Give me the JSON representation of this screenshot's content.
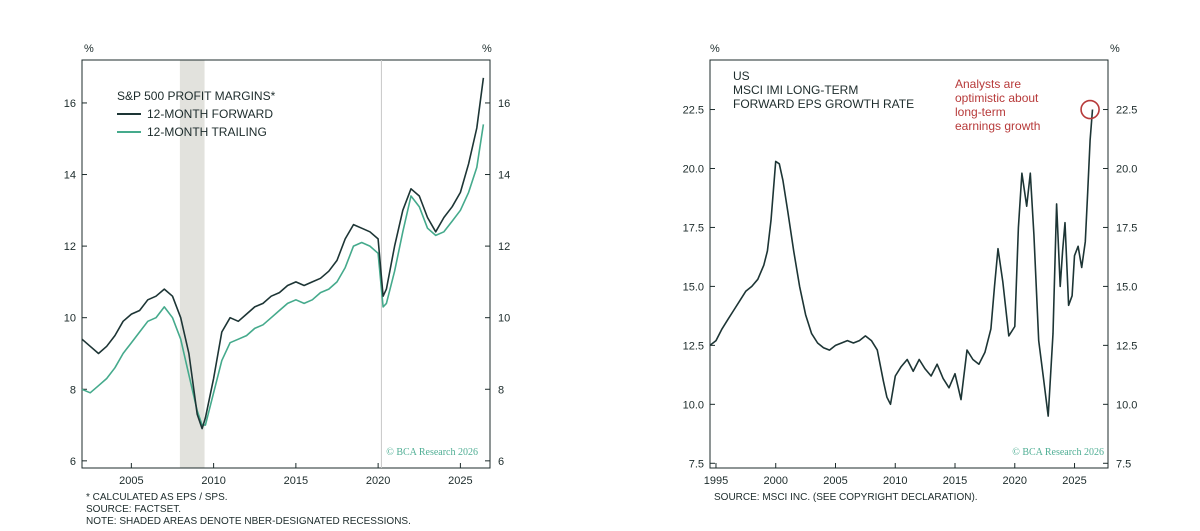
{
  "colors": {
    "forward": "#1d3535",
    "trailing": "#45aa8c",
    "recession": "#e2e2dd",
    "annotation": "#b73a3a",
    "copyright": "#4fae94",
    "axis": "#1c2b2b"
  },
  "chart_data": [
    {
      "type": "line",
      "legend_title": "S&P 500 PROFIT MARGINS*",
      "unit_left": "%",
      "unit_right": "%",
      "xlim": [
        2002.0,
        2026.8
      ],
      "ylim": [
        5.8,
        17.2
      ],
      "xticks": [
        2005,
        2010,
        2015,
        2020,
        2025
      ],
      "yticks": [
        6,
        8,
        10,
        12,
        14,
        16
      ],
      "grid": false,
      "legend_position": "top-left",
      "recession_shading": [
        [
          2007.95,
          2009.45
        ]
      ],
      "vertical_line": 2020.2,
      "series": [
        {
          "name": "12-MONTH FORWARD",
          "color": "#1d3535",
          "x": [
            2002.0,
            2002.5,
            2003.0,
            2003.5,
            2004.0,
            2004.5,
            2005.0,
            2005.5,
            2006.0,
            2006.5,
            2007.0,
            2007.5,
            2008.0,
            2008.5,
            2009.0,
            2009.3,
            2009.5,
            2010.0,
            2010.5,
            2011.0,
            2011.5,
            2012.0,
            2012.5,
            2013.0,
            2013.5,
            2014.0,
            2014.5,
            2015.0,
            2015.5,
            2016.0,
            2016.5,
            2017.0,
            2017.5,
            2018.0,
            2018.5,
            2019.0,
            2019.5,
            2020.0,
            2020.3,
            2020.5,
            2021.0,
            2021.5,
            2022.0,
            2022.5,
            2023.0,
            2023.5,
            2024.0,
            2024.5,
            2025.0,
            2025.5,
            2026.0,
            2026.4
          ],
          "values": [
            9.4,
            9.2,
            9.0,
            9.2,
            9.5,
            9.9,
            10.1,
            10.2,
            10.5,
            10.6,
            10.8,
            10.6,
            10.0,
            9.0,
            7.3,
            6.9,
            7.2,
            8.3,
            9.6,
            10.0,
            9.9,
            10.1,
            10.3,
            10.4,
            10.6,
            10.7,
            10.9,
            11.0,
            10.9,
            11.0,
            11.1,
            11.3,
            11.6,
            12.2,
            12.6,
            12.5,
            12.4,
            12.2,
            10.6,
            10.8,
            12.0,
            13.0,
            13.6,
            13.4,
            12.8,
            12.4,
            12.8,
            13.1,
            13.5,
            14.3,
            15.3,
            16.7
          ]
        },
        {
          "name": "12-MONTH TRAILING",
          "color": "#45aa8c",
          "x": [
            2002.0,
            2002.5,
            2003.0,
            2003.5,
            2004.0,
            2004.5,
            2005.0,
            2005.5,
            2006.0,
            2006.5,
            2007.0,
            2007.5,
            2008.0,
            2008.5,
            2009.0,
            2009.3,
            2009.5,
            2010.0,
            2010.5,
            2011.0,
            2011.5,
            2012.0,
            2012.5,
            2013.0,
            2013.5,
            2014.0,
            2014.5,
            2015.0,
            2015.5,
            2016.0,
            2016.5,
            2017.0,
            2017.5,
            2018.0,
            2018.5,
            2019.0,
            2019.5,
            2020.0,
            2020.3,
            2020.5,
            2021.0,
            2021.5,
            2022.0,
            2022.5,
            2023.0,
            2023.5,
            2024.0,
            2024.5,
            2025.0,
            2025.5,
            2026.0,
            2026.4
          ],
          "values": [
            8.0,
            7.9,
            8.1,
            8.3,
            8.6,
            9.0,
            9.3,
            9.6,
            9.9,
            10.0,
            10.3,
            10.0,
            9.4,
            8.4,
            7.4,
            7.0,
            7.0,
            7.9,
            8.8,
            9.3,
            9.4,
            9.5,
            9.7,
            9.8,
            10.0,
            10.2,
            10.4,
            10.5,
            10.4,
            10.5,
            10.7,
            10.8,
            11.0,
            11.4,
            12.0,
            12.1,
            12.0,
            11.8,
            10.3,
            10.4,
            11.3,
            12.4,
            13.4,
            13.1,
            12.5,
            12.3,
            12.4,
            12.7,
            13.0,
            13.5,
            14.2,
            15.4
          ]
        }
      ]
    },
    {
      "type": "line",
      "legend_title_lines": [
        "US",
        "MSCI IMI LONG-TERM",
        "FORWARD EPS GROWTH RATE"
      ],
      "unit_left": "%",
      "unit_right": "%",
      "xlim": [
        1994.5,
        2027.8
      ],
      "ylim": [
        7.3,
        24.6
      ],
      "xticks": [
        1995,
        2000,
        2005,
        2010,
        2015,
        2020,
        2025
      ],
      "yticks": [
        7.5,
        10.0,
        12.5,
        15.0,
        17.5,
        20.0,
        22.5
      ],
      "grid": false,
      "annotation": {
        "text_lines": [
          "Analysts are",
          "optimistic about",
          "long-term",
          "earnings growth"
        ],
        "x": 2026.3,
        "y": 22.5
      },
      "series": [
        {
          "name": "",
          "color": "#1d3535",
          "x": [
            1994.5,
            1995.0,
            1995.5,
            1996.0,
            1996.5,
            1997.0,
            1997.5,
            1998.0,
            1998.5,
            1999.0,
            1999.3,
            1999.6,
            2000.0,
            2000.3,
            2000.6,
            2001.0,
            2001.5,
            2002.0,
            2002.5,
            2003.0,
            2003.5,
            2004.0,
            2004.5,
            2005.0,
            2005.5,
            2006.0,
            2006.5,
            2007.0,
            2007.5,
            2008.0,
            2008.5,
            2009.0,
            2009.3,
            2009.6,
            2010.0,
            2010.5,
            2011.0,
            2011.5,
            2012.0,
            2012.5,
            2013.0,
            2013.5,
            2014.0,
            2014.5,
            2015.0,
            2015.5,
            2016.0,
            2016.5,
            2017.0,
            2017.5,
            2018.0,
            2018.3,
            2018.6,
            2019.0,
            2019.5,
            2020.0,
            2020.3,
            2020.6,
            2021.0,
            2021.3,
            2021.6,
            2022.0,
            2022.4,
            2022.8,
            2023.2,
            2023.5,
            2023.8,
            2024.0,
            2024.2,
            2024.5,
            2024.8,
            2025.0,
            2025.3,
            2025.6,
            2025.9,
            2026.1,
            2026.3,
            2026.5
          ],
          "values": [
            12.5,
            12.7,
            13.2,
            13.6,
            14.0,
            14.4,
            14.8,
            15.0,
            15.3,
            15.9,
            16.5,
            17.8,
            20.3,
            20.2,
            19.5,
            18.2,
            16.5,
            15.0,
            13.8,
            13.0,
            12.6,
            12.4,
            12.3,
            12.5,
            12.6,
            12.7,
            12.6,
            12.7,
            12.9,
            12.7,
            12.3,
            11.0,
            10.3,
            10.0,
            11.2,
            11.6,
            11.9,
            11.4,
            11.9,
            11.5,
            11.2,
            11.7,
            11.1,
            10.7,
            11.3,
            10.2,
            12.3,
            11.9,
            11.7,
            12.2,
            13.2,
            15.0,
            16.6,
            15.2,
            12.9,
            13.3,
            17.5,
            19.8,
            18.4,
            19.8,
            17.2,
            12.7,
            11.1,
            9.5,
            13.0,
            18.5,
            15.0,
            16.5,
            17.7,
            14.2,
            14.6,
            16.3,
            16.7,
            15.8,
            16.9,
            19.0,
            21.2,
            22.5
          ]
        }
      ]
    }
  ],
  "footnotes_left": [
    "* CALCULATED AS EPS / SPS.",
    "SOURCE: FACTSET.",
    "NOTE: SHADED AREAS DENOTE NBER-DESIGNATED RECESSIONS."
  ],
  "footnotes_right": [
    "SOURCE: MSCI INC. (SEE COPYRIGHT DECLARATION)."
  ],
  "copyright_left": "© BCA Research 2026",
  "copyright_right": "© BCA Research 2026"
}
